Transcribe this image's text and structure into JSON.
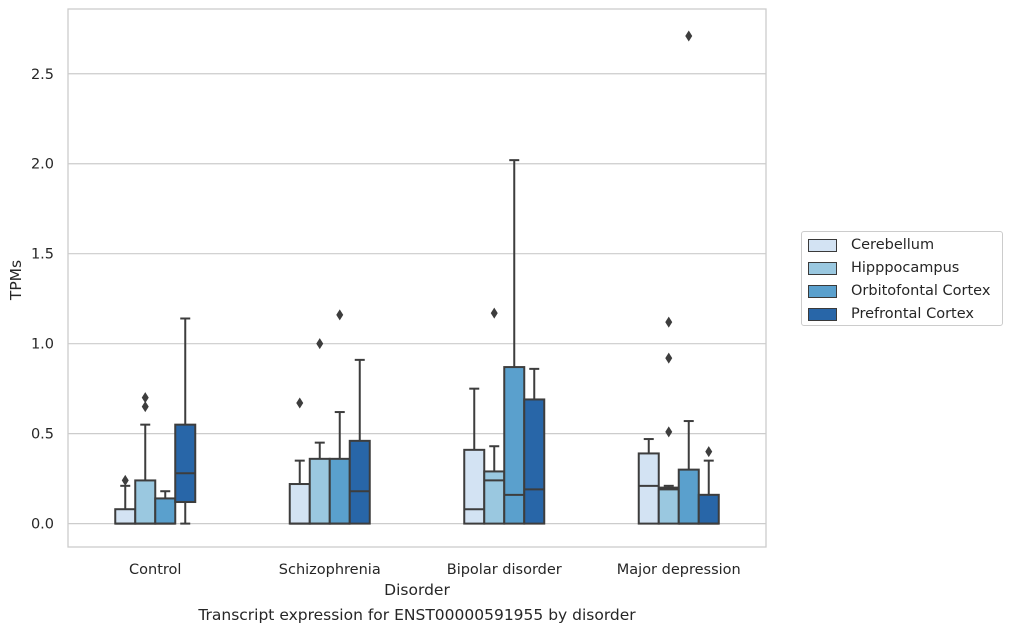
{
  "chart_data": {
    "type": "boxplot",
    "caption": "Transcript expression for ENST00000591955 by disorder",
    "xlabel": "Disorder",
    "ylabel": "TPMs",
    "ylim": [
      -0.13,
      2.86
    ],
    "yticks": [
      0.0,
      0.5,
      1.0,
      1.5,
      2.0,
      2.5
    ],
    "ytick_labels": [
      "0.0",
      "0.5",
      "1.0",
      "1.5",
      "2.0",
      "2.5"
    ],
    "grid": true,
    "legend_position": "right",
    "categories": [
      "Control",
      "Schizophrenia",
      "Bipolar disorder",
      "Major depression"
    ],
    "series": [
      {
        "name": "Cerebellum",
        "color": "#d3e3f3",
        "boxes": [
          {
            "q1": 0.0,
            "median": 0.0,
            "q3": 0.08,
            "whisker_low": 0.0,
            "whisker_high": 0.21,
            "outliers": [
              0.24
            ]
          },
          {
            "q1": 0.0,
            "median": 0.0,
            "q3": 0.22,
            "whisker_low": 0.0,
            "whisker_high": 0.35,
            "outliers": [
              0.67
            ]
          },
          {
            "q1": 0.0,
            "median": 0.08,
            "q3": 0.41,
            "whisker_low": 0.0,
            "whisker_high": 0.75,
            "outliers": []
          },
          {
            "q1": 0.0,
            "median": 0.21,
            "q3": 0.39,
            "whisker_low": 0.0,
            "whisker_high": 0.47,
            "outliers": []
          }
        ]
      },
      {
        "name": "Hipppocampus",
        "color": "#9ac8e0",
        "boxes": [
          {
            "q1": 0.0,
            "median": 0.0,
            "q3": 0.24,
            "whisker_low": 0.0,
            "whisker_high": 0.55,
            "outliers": [
              0.65,
              0.7
            ]
          },
          {
            "q1": 0.0,
            "median": 0.0,
            "q3": 0.36,
            "whisker_low": 0.0,
            "whisker_high": 0.45,
            "outliers": [
              1.0
            ]
          },
          {
            "q1": 0.0,
            "median": 0.24,
            "q3": 0.29,
            "whisker_low": 0.0,
            "whisker_high": 0.43,
            "outliers": [
              1.17
            ]
          },
          {
            "q1": 0.0,
            "median": 0.19,
            "q3": 0.2,
            "whisker_low": 0.0,
            "whisker_high": 0.21,
            "outliers": [
              0.51,
              0.92,
              1.12
            ]
          }
        ]
      },
      {
        "name": "Orbitofontal Cortex",
        "color": "#5aa0cd",
        "boxes": [
          {
            "q1": 0.0,
            "median": 0.0,
            "q3": 0.14,
            "whisker_low": 0.0,
            "whisker_high": 0.18,
            "outliers": []
          },
          {
            "q1": 0.0,
            "median": 0.0,
            "q3": 0.36,
            "whisker_low": 0.0,
            "whisker_high": 0.62,
            "outliers": [
              1.16
            ]
          },
          {
            "q1": 0.0,
            "median": 0.16,
            "q3": 0.87,
            "whisker_low": 0.0,
            "whisker_high": 2.02,
            "outliers": []
          },
          {
            "q1": 0.0,
            "median": 0.0,
            "q3": 0.3,
            "whisker_low": 0.0,
            "whisker_high": 0.57,
            "outliers": [
              2.71
            ]
          }
        ]
      },
      {
        "name": "Prefrontal Cortex",
        "color": "#2866a8",
        "boxes": [
          {
            "q1": 0.12,
            "median": 0.28,
            "q3": 0.55,
            "whisker_low": 0.0,
            "whisker_high": 1.14,
            "outliers": []
          },
          {
            "q1": 0.0,
            "median": 0.18,
            "q3": 0.46,
            "whisker_low": 0.0,
            "whisker_high": 0.91,
            "outliers": []
          },
          {
            "q1": 0.0,
            "median": 0.19,
            "q3": 0.69,
            "whisker_low": 0.0,
            "whisker_high": 0.86,
            "outliers": []
          },
          {
            "q1": 0.0,
            "median": 0.0,
            "q3": 0.16,
            "whisker_low": 0.0,
            "whisker_high": 0.35,
            "outliers": [
              0.4
            ]
          }
        ]
      }
    ]
  }
}
